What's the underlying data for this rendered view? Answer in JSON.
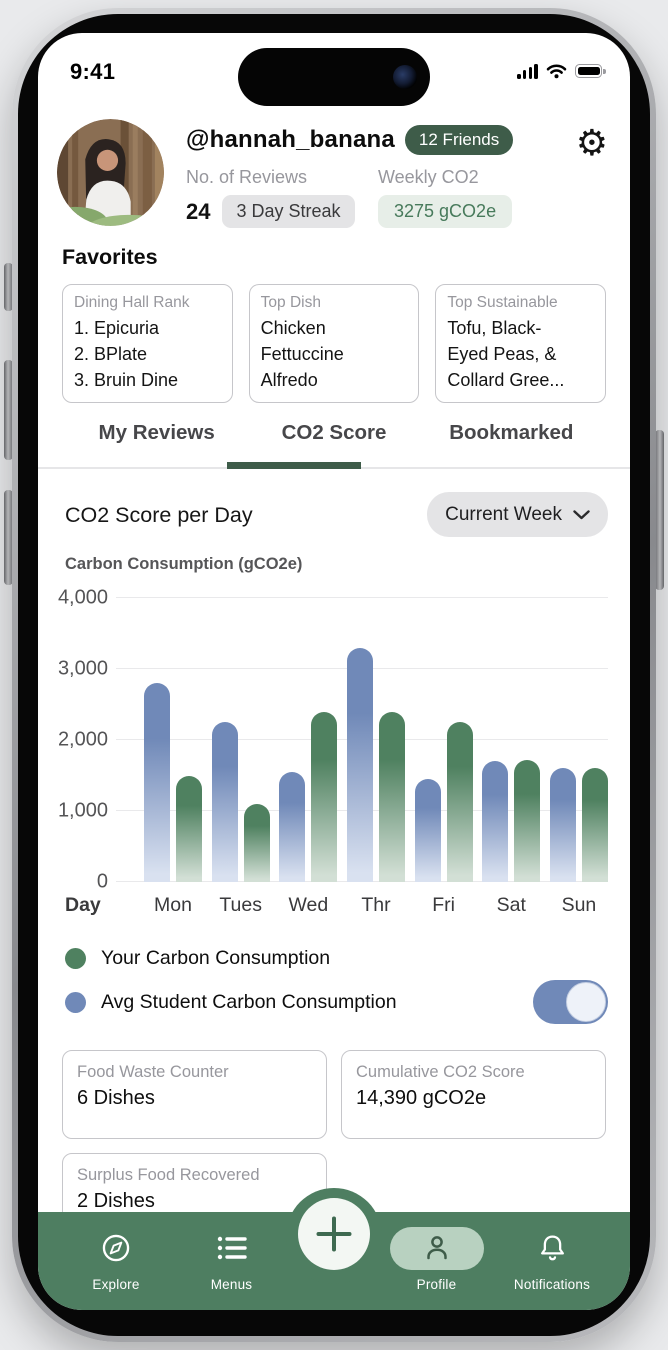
{
  "status_bar": {
    "time": "9:41"
  },
  "profile": {
    "handle": "@hannah_banana",
    "friends_badge": "12 Friends",
    "reviews_label": "No. of Reviews",
    "reviews_count": "24",
    "streak_badge": "3 Day Streak",
    "weekly_co2_label": "Weekly CO2",
    "weekly_co2_value": "3275 gCO2e"
  },
  "favorites": {
    "heading": "Favorites",
    "cards": [
      {
        "title": "Dining Hall Rank",
        "lines": [
          "1. Epicuria",
          "2. BPlate",
          "3. Bruin Dine"
        ]
      },
      {
        "title": "Top Dish",
        "lines": [
          "Chicken",
          "Fettuccine",
          "Alfredo"
        ]
      },
      {
        "title": "Top Sustainable",
        "lines": [
          "Tofu, Black-",
          "Eyed Peas, &",
          "Collard Gree..."
        ]
      }
    ]
  },
  "tabs": [
    {
      "label": "My Reviews",
      "active": false
    },
    {
      "label": "CO2 Score",
      "active": true
    },
    {
      "label": "Bookmarked",
      "active": false
    }
  ],
  "chart_section": {
    "title": "CO2 Score per Day",
    "range_selector": "Current Week"
  },
  "chart_data": {
    "type": "bar",
    "title": "CO2 Score per Day",
    "ylabel": "Carbon Consumption (gCO2e)",
    "xlabel": "Day",
    "ylim": [
      0,
      4000
    ],
    "yticks": [
      0,
      1000,
      2000,
      3000,
      4000
    ],
    "grid": true,
    "categories": [
      "Mon",
      "Tues",
      "Wed",
      "Thr",
      "Fri",
      "Sat",
      "Sun"
    ],
    "series": [
      {
        "key": "avg",
        "name": "Avg Student Carbon Consumption",
        "color": "#7089b8",
        "fade": "#d9e1f0",
        "values": [
          2800,
          2250,
          1550,
          3300,
          1450,
          1700,
          1600
        ]
      },
      {
        "key": "you",
        "name": "Your Carbon Consumption",
        "color": "#4f8160",
        "fade": "#d2dfd5",
        "values": [
          1500,
          1100,
          2400,
          2400,
          2250,
          1720,
          1600
        ]
      }
    ]
  },
  "legend": [
    {
      "label": "Your Carbon Consumption",
      "color": "#4f8160"
    },
    {
      "label": "Avg Student Carbon Consumption",
      "color": "#7089b8",
      "toggle": "on"
    }
  ],
  "stat_cards": [
    {
      "title": "Food Waste Counter",
      "value": "6 Dishes"
    },
    {
      "title": "Cumulative CO2 Score",
      "value": "14,390 gCO2e"
    },
    {
      "title": "Surplus Food Recovered",
      "value": "2 Dishes"
    }
  ],
  "bottom_nav": {
    "items": [
      {
        "label": "Explore",
        "active": false
      },
      {
        "label": "Menus",
        "active": false
      },
      {
        "label": "Profile",
        "active": true
      },
      {
        "label": "Notifications",
        "active": false
      }
    ]
  },
  "icons": {
    "settings": "gear-icon",
    "dropdown": "chevron-down-icon",
    "add": "plus-icon",
    "explore": "compass-icon",
    "menus": "list-icon",
    "profile": "person-icon",
    "notifications": "bell-icon"
  },
  "colors": {
    "accent_dark_green": "#3e5c49",
    "nav_green": "#4e7e61",
    "active_pill_green": "#b8d1c0",
    "co2_pill_bg": "#e7eee8",
    "co2_pill_text": "#477a5b",
    "bar_blue": "#7089b8",
    "bar_green": "#4f8160",
    "gray_pill": "#e4e4e6"
  }
}
